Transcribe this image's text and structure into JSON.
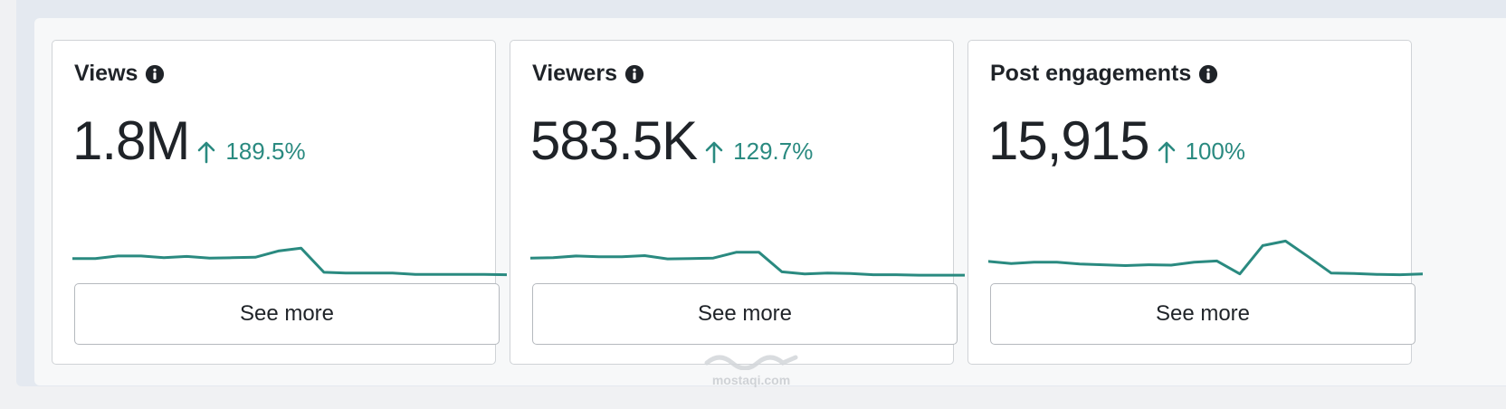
{
  "colors": {
    "accent": "#2a8a80",
    "text": "#1f2328",
    "card_border": "#d0d3d7",
    "button_border": "#b5b9be"
  },
  "cards": [
    {
      "title": "Views",
      "info_icon": "info-icon",
      "value": "1.8M",
      "trend_icon": "arrow-up-icon",
      "change": "189.5%",
      "button_label": "See more",
      "chart_data": {
        "type": "line",
        "values": [
          42,
          42,
          48,
          48,
          44,
          47,
          43,
          44,
          45,
          60,
          67,
          9,
          7,
          7,
          7,
          4,
          4,
          4,
          4,
          3
        ]
      }
    },
    {
      "title": "Viewers",
      "info_icon": "info-icon",
      "value": "583.5K",
      "trend_icon": "arrow-up-icon",
      "change": "129.7%",
      "button_label": "See more",
      "chart_data": {
        "type": "line",
        "values": [
          43,
          44,
          48,
          46,
          46,
          49,
          41,
          42,
          43,
          57,
          57,
          10,
          5,
          7,
          6,
          3,
          3,
          2,
          2,
          2
        ]
      }
    },
    {
      "title": "Post engagements",
      "info_icon": "info-icon",
      "value": "15,915",
      "trend_icon": "arrow-up-icon",
      "change": "100%",
      "button_label": "See more",
      "chart_data": {
        "type": "line",
        "values": [
          35,
          30,
          33,
          33,
          29,
          27,
          25,
          27,
          26,
          33,
          36,
          5,
          73,
          84,
          46,
          7,
          6,
          4,
          3,
          5
        ]
      }
    }
  ],
  "watermark": {
    "text": "mostaqi.com",
    "logo_icon": "mostaql-logo-icon"
  }
}
